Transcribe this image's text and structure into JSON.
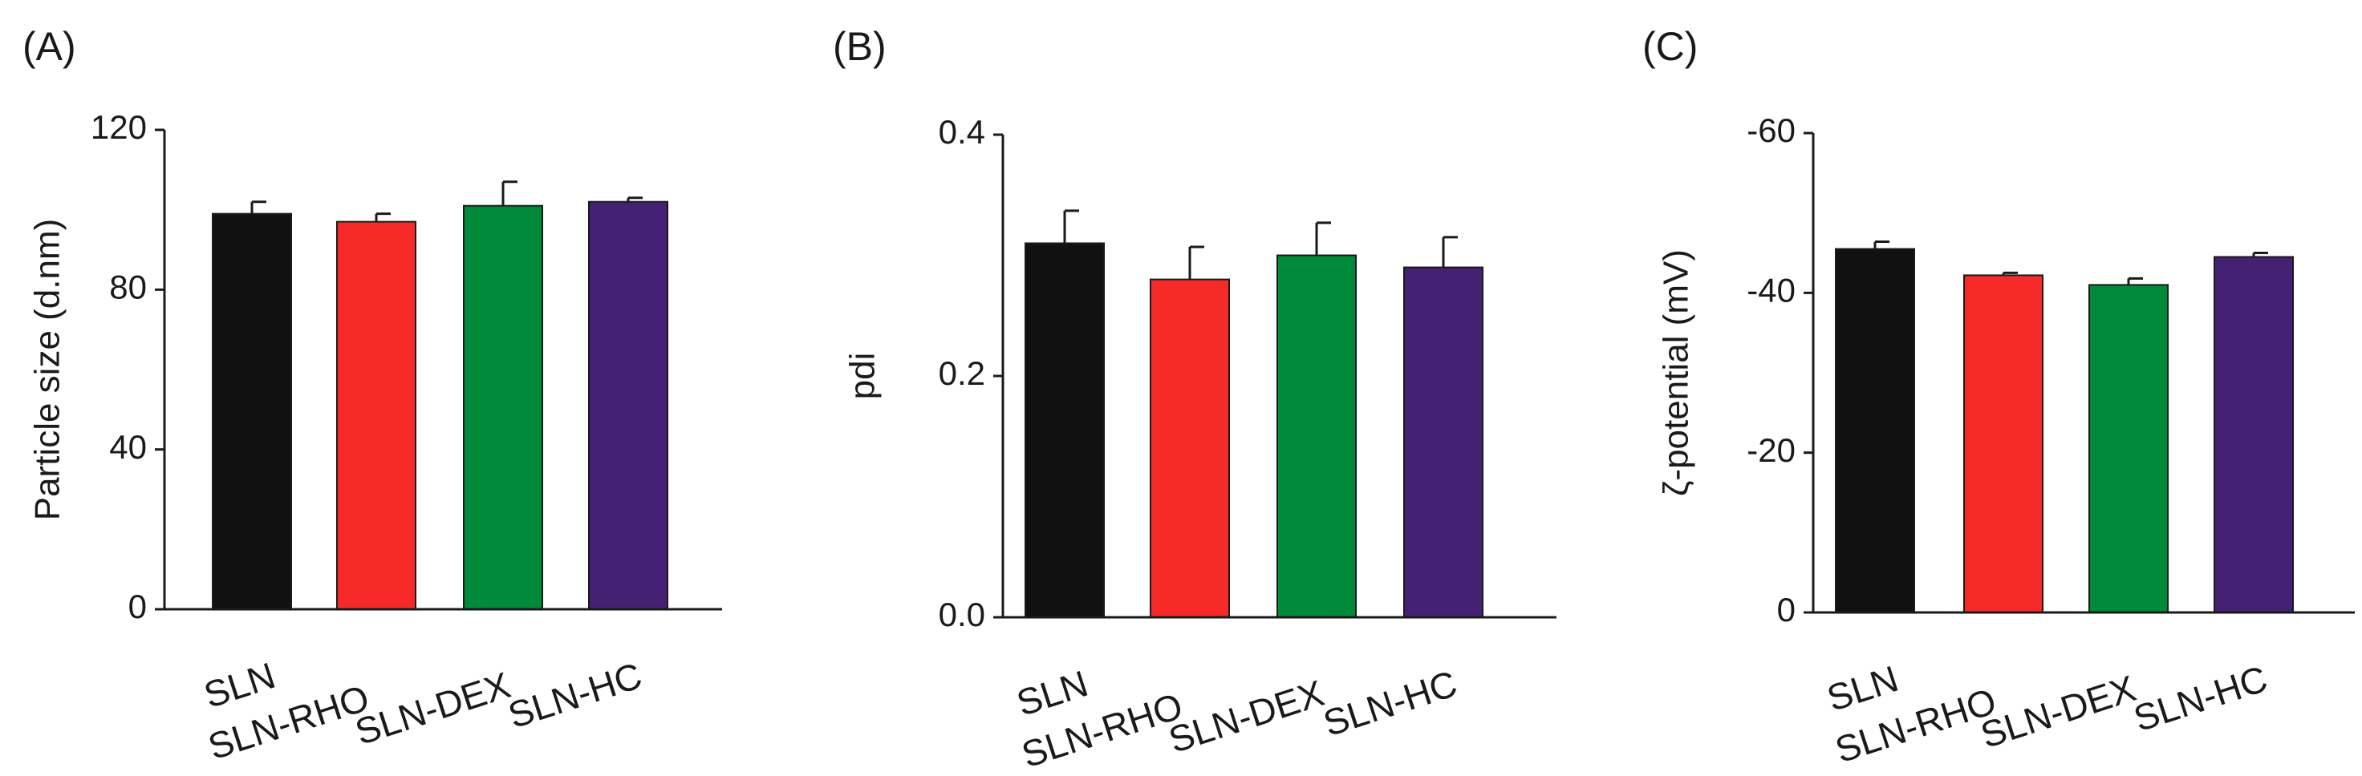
{
  "chart_data": [
    {
      "type": "bar",
      "panel_label": "(A)",
      "ylabel": "Particle size (d.nm)",
      "categories": [
        "SLN",
        "SLN-RHO",
        "SLN-DEX",
        "SLN-HC"
      ],
      "values": [
        99,
        97,
        101,
        102
      ],
      "errors": [
        3,
        2,
        6,
        1
      ],
      "ylim": [
        0,
        120
      ],
      "yticks": [
        0,
        40,
        80,
        120
      ],
      "ytick_labels": [
        "0",
        "40",
        "80",
        "120"
      ]
    },
    {
      "type": "bar",
      "panel_label": "(B)",
      "ylabel": "pdi",
      "categories": [
        "SLN",
        "SLN-RHO",
        "SLN-DEX",
        "SLN-HC"
      ],
      "values": [
        0.31,
        0.28,
        0.3,
        0.29
      ],
      "errors": [
        0.027,
        0.027,
        0.027,
        0.025
      ],
      "ylim": [
        0,
        0.4
      ],
      "yticks": [
        0,
        0.2,
        0.4
      ],
      "ytick_labels": [
        "0.0",
        "0.2",
        "0.4"
      ]
    },
    {
      "type": "bar",
      "panel_label": "(C)",
      "ylabel": "ζ-potential (mV)",
      "categories": [
        "SLN",
        "SLN-RHO",
        "SLN-DEX",
        "SLN-HC"
      ],
      "values": [
        -45.5,
        -42.2,
        -41.0,
        -44.5
      ],
      "errors": [
        0.9,
        0.3,
        0.8,
        0.5
      ],
      "ylim": [
        0,
        -60
      ],
      "yticks": [
        0,
        -20,
        -40,
        -60
      ],
      "ytick_labels": [
        "0",
        "-20",
        "-40",
        "-60"
      ]
    }
  ],
  "colors": [
    "#111111",
    "#f72a2a",
    "#008a3a",
    "#452173"
  ]
}
